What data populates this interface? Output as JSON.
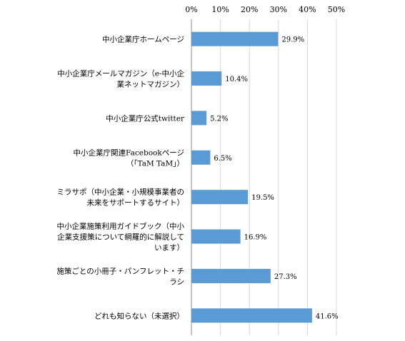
{
  "chart_data": {
    "type": "bar",
    "orientation": "horizontal",
    "title": "",
    "xlabel": "",
    "ylabel": "",
    "xlim": [
      0,
      50
    ],
    "x_ticks": [
      "0%",
      "10%",
      "20%",
      "30%",
      "40%",
      "50%"
    ],
    "grid": "vertical",
    "legend": "none",
    "bar_color": "#5b9bd5",
    "categories": [
      [
        "中小企業庁ホームページ"
      ],
      [
        "中小企業庁メールマガジン（e-中小企",
        "業ネットマガジン）"
      ],
      [
        "中小企業庁公式twitter"
      ],
      [
        "中小企業庁関連Facebookページ",
        "（「TaM TaM」）"
      ],
      [
        "ミラサポ（中小企業・小規模事業者の",
        "未来をサポートするサイト）"
      ],
      [
        "中小企業施策利用ガイドブック（中小",
        "企業支援策について網羅的に解説して",
        "います）"
      ],
      [
        "施策ごとの小冊子・パンフレット・チ",
        "ラシ"
      ],
      [
        "どれも知らない（未選択）"
      ]
    ],
    "values": [
      29.9,
      10.4,
      5.2,
      6.5,
      19.5,
      16.9,
      27.3,
      41.6
    ],
    "value_labels": [
      "29.9%",
      "10.4%",
      "5.2%",
      "6.5%",
      "19.5%",
      "16.9%",
      "27.3%",
      "41.6%"
    ]
  }
}
